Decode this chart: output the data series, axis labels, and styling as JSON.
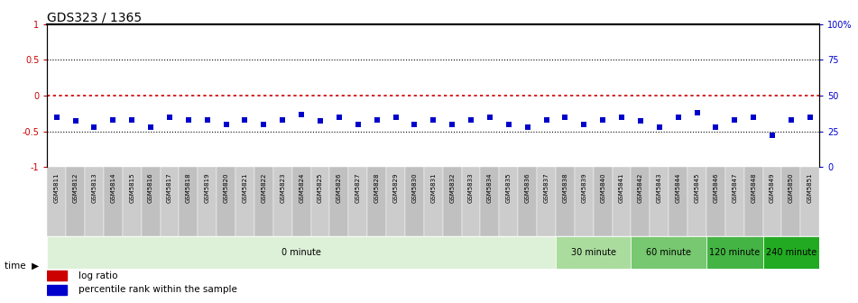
{
  "title": "GDS323 / 1365",
  "samples": [
    "GSM5811",
    "GSM5812",
    "GSM5813",
    "GSM5814",
    "GSM5815",
    "GSM5816",
    "GSM5817",
    "GSM5818",
    "GSM5819",
    "GSM5820",
    "GSM5821",
    "GSM5822",
    "GSM5823",
    "GSM5824",
    "GSM5825",
    "GSM5826",
    "GSM5827",
    "GSM5828",
    "GSM5829",
    "GSM5830",
    "GSM5831",
    "GSM5832",
    "GSM5833",
    "GSM5834",
    "GSM5835",
    "GSM5836",
    "GSM5837",
    "GSM5838",
    "GSM5839",
    "GSM5840",
    "GSM5841",
    "GSM5842",
    "GSM5843",
    "GSM5844",
    "GSM5845",
    "GSM5846",
    "GSM5847",
    "GSM5848",
    "GSM5849",
    "GSM5850",
    "GSM5851"
  ],
  "percentile_rank": [
    35,
    32,
    28,
    33,
    33,
    28,
    35,
    33,
    33,
    30,
    33,
    30,
    33,
    37,
    32,
    35,
    30,
    33,
    35,
    30,
    33,
    30,
    33,
    35,
    30,
    28,
    33,
    35,
    30,
    33,
    35,
    32,
    28,
    35,
    38,
    28,
    33,
    35,
    22,
    33,
    35
  ],
  "time_groups": [
    {
      "label": "0 minute",
      "start": 0,
      "end": 27,
      "color": "#ddf0d8"
    },
    {
      "label": "30 minute",
      "start": 27,
      "end": 31,
      "color": "#aadc9e"
    },
    {
      "label": "60 minute",
      "start": 31,
      "end": 35,
      "color": "#77c870"
    },
    {
      "label": "120 minute",
      "start": 35,
      "end": 38,
      "color": "#44b444"
    },
    {
      "label": "240 minute",
      "start": 38,
      "end": 41,
      "color": "#22aa22"
    }
  ],
  "log_ratio_color": "#cc0000",
  "percentile_color": "#0000cc",
  "left_tick_color": "#cc0000",
  "right_tick_color": "#0000cc",
  "background_color": "#ffffff",
  "title_fontsize": 10,
  "legend_log_ratio": "log ratio",
  "legend_percentile": "percentile rank within the sample",
  "sample_label_bg": "#cccccc"
}
